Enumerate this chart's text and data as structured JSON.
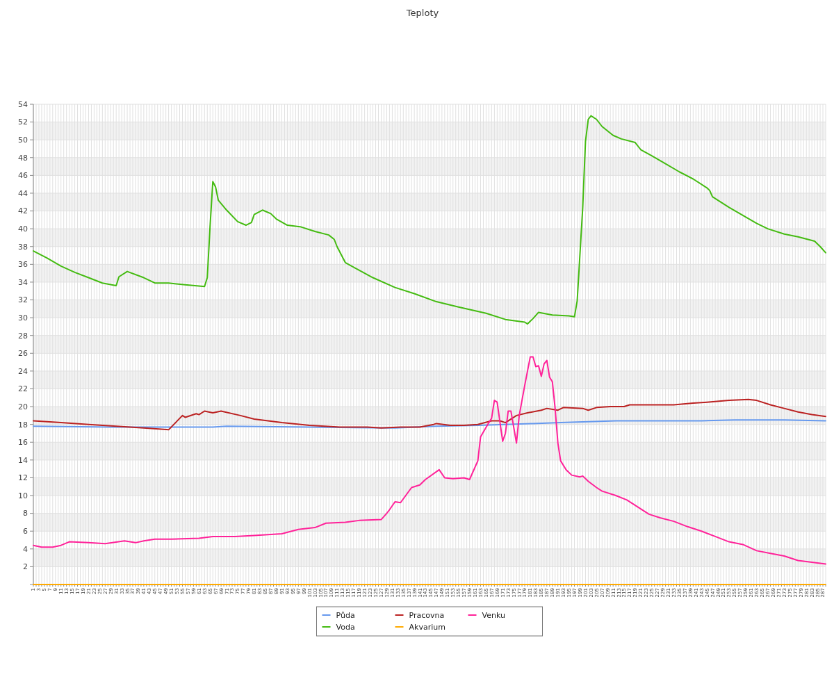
{
  "chart_data": {
    "type": "line",
    "title": "Teploty",
    "grid": true,
    "legend": "bottom",
    "marker": "none",
    "line_style": "solid",
    "xlim": [
      1,
      288
    ],
    "ylim": [
      0,
      54
    ],
    "yticks": [
      {
        "value": 0,
        "label": null
      },
      2,
      4,
      6,
      8,
      10,
      12,
      14,
      16,
      18,
      20,
      22,
      24,
      26,
      28,
      30,
      32,
      34,
      36,
      38,
      40,
      42,
      44,
      46,
      48,
      50,
      52,
      54
    ],
    "xticks": [
      1,
      {
        "value": 2,
        "label": null
      },
      3,
      {
        "value": 4,
        "label": null
      },
      5,
      {
        "value": 6,
        "label": null
      },
      7,
      {
        "value": 8,
        "label": null
      },
      9,
      {
        "value": 10,
        "label": null
      },
      11,
      {
        "value": 12,
        "label": null
      },
      13,
      {
        "value": 14,
        "label": null
      },
      15,
      {
        "value": 16,
        "label": null
      },
      17,
      {
        "value": 18,
        "label": null
      },
      19,
      {
        "value": 20,
        "label": null
      },
      21,
      {
        "value": 22,
        "label": null
      },
      23,
      {
        "value": 24,
        "label": null
      },
      25,
      {
        "value": 26,
        "label": null
      },
      27,
      {
        "value": 28,
        "label": null
      },
      29,
      {
        "value": 30,
        "label": null
      },
      31,
      {
        "value": 32,
        "label": null
      },
      33,
      {
        "value": 34,
        "label": null
      },
      35,
      {
        "value": 36,
        "label": null
      },
      37,
      {
        "value": 38,
        "label": null
      },
      39,
      {
        "value": 40,
        "label": null
      },
      41,
      {
        "value": 42,
        "label": null
      },
      43,
      {
        "value": 44,
        "label": null
      },
      45,
      {
        "value": 46,
        "label": null
      },
      47,
      {
        "value": 48,
        "label": null
      },
      49,
      {
        "value": 50,
        "label": null
      },
      51,
      {
        "value": 52,
        "label": null
      },
      53,
      {
        "value": 54,
        "label": null
      },
      55,
      {
        "value": 56,
        "label": null
      },
      57,
      {
        "value": 58,
        "label": null
      },
      59,
      {
        "value": 60,
        "label": null
      },
      61,
      {
        "value": 62,
        "label": null
      },
      63,
      {
        "value": 64,
        "label": null
      },
      65,
      {
        "value": 66,
        "label": null
      },
      67,
      {
        "value": 68,
        "label": null
      },
      69,
      {
        "value": 70,
        "label": null
      },
      71,
      {
        "value": 72,
        "label": null
      },
      73,
      {
        "value": 74,
        "label": null
      },
      75,
      {
        "value": 76,
        "label": null
      },
      77,
      {
        "value": 78,
        "label": null
      },
      79,
      {
        "value": 80,
        "label": null
      },
      81,
      {
        "value": 82,
        "label": null
      },
      83,
      {
        "value": 84,
        "label": null
      },
      85,
      {
        "value": 86,
        "label": null
      },
      87,
      {
        "value": 88,
        "label": null
      },
      89,
      {
        "value": 90,
        "label": null
      },
      91,
      {
        "value": 92,
        "label": null
      },
      93,
      {
        "value": 94,
        "label": null
      },
      95,
      {
        "value": 96,
        "label": null
      },
      97,
      {
        "value": 98,
        "label": null
      },
      99,
      {
        "value": 100,
        "label": null
      },
      101,
      {
        "value": 102,
        "label": null
      },
      103,
      {
        "value": 104,
        "label": null
      },
      105,
      {
        "value": 106,
        "label": null
      },
      107,
      {
        "value": 108,
        "label": null
      },
      109,
      {
        "value": 110,
        "label": null
      },
      111,
      {
        "value": 112,
        "label": null
      },
      113,
      {
        "value": 114,
        "label": null
      },
      115,
      {
        "value": 116,
        "label": null
      },
      117,
      {
        "value": 118,
        "label": null
      },
      119,
      {
        "value": 120,
        "label": null
      },
      121,
      {
        "value": 122,
        "label": null
      },
      123,
      {
        "value": 124,
        "label": null
      },
      125,
      {
        "value": 126,
        "label": null
      },
      127,
      {
        "value": 128,
        "label": null
      },
      129,
      {
        "value": 130,
        "label": null
      },
      131,
      {
        "value": 132,
        "label": null
      },
      133,
      {
        "value": 134,
        "label": null
      },
      135,
      {
        "value": 136,
        "label": null
      },
      137,
      {
        "value": 138,
        "label": null
      },
      139,
      {
        "value": 140,
        "label": null
      },
      141,
      {
        "value": 142,
        "label": null
      },
      143,
      {
        "value": 144,
        "label": null
      },
      145,
      {
        "value": 146,
        "label": null
      },
      147,
      {
        "value": 148,
        "label": null
      },
      149,
      {
        "value": 150,
        "label": null
      },
      151,
      {
        "value": 152,
        "label": null
      },
      153,
      {
        "value": 154,
        "label": null
      },
      155,
      {
        "value": 156,
        "label": null
      },
      157,
      {
        "value": 158,
        "label": null
      },
      159,
      {
        "value": 160,
        "label": null
      },
      161,
      {
        "value": 162,
        "label": null
      },
      163,
      {
        "value": 164,
        "label": null
      },
      165,
      {
        "value": 166,
        "label": null
      },
      167,
      {
        "value": 168,
        "label": null
      },
      169,
      {
        "value": 170,
        "label": null
      },
      171,
      {
        "value": 172,
        "label": null
      },
      173,
      {
        "value": 174,
        "label": null
      },
      175,
      {
        "value": 176,
        "label": null
      },
      177,
      {
        "value": 178,
        "label": null
      },
      179,
      {
        "value": 180,
        "label": null
      },
      181,
      {
        "value": 182,
        "label": null
      },
      183,
      {
        "value": 184,
        "label": null
      },
      185,
      {
        "value": 186,
        "label": null
      },
      187,
      {
        "value": 188,
        "label": null
      },
      189,
      {
        "value": 190,
        "label": null
      },
      191,
      {
        "value": 192,
        "label": null
      },
      193,
      {
        "value": 194,
        "label": null
      },
      195,
      {
        "value": 196,
        "label": null
      },
      197,
      {
        "value": 198,
        "label": null
      },
      199,
      {
        "value": 200,
        "label": null
      },
      201,
      {
        "value": 202,
        "label": null
      },
      203,
      {
        "value": 204,
        "label": null
      },
      205,
      {
        "value": 206,
        "label": null
      },
      207,
      {
        "value": 208,
        "label": null
      },
      209,
      {
        "value": 210,
        "label": null
      },
      211,
      {
        "value": 212,
        "label": null
      },
      213,
      {
        "value": 214,
        "label": null
      },
      215,
      {
        "value": 216,
        "label": null
      },
      217,
      {
        "value": 218,
        "label": null
      },
      219,
      {
        "value": 220,
        "label": null
      },
      221,
      {
        "value": 222,
        "label": null
      },
      223,
      {
        "value": 224,
        "label": null
      },
      225,
      {
        "value": 226,
        "label": null
      },
      227,
      {
        "value": 228,
        "label": null
      },
      229,
      {
        "value": 230,
        "label": null
      },
      231,
      {
        "value": 232,
        "label": null
      },
      233,
      {
        "value": 234,
        "label": null
      },
      235,
      {
        "value": 236,
        "label": null
      },
      237,
      {
        "value": 238,
        "label": null
      },
      239,
      {
        "value": 240,
        "label": null
      },
      241,
      {
        "value": 242,
        "label": null
      },
      243,
      {
        "value": 244,
        "label": null
      },
      245,
      {
        "value": 246,
        "label": null
      },
      247,
      {
        "value": 248,
        "label": null
      },
      249,
      {
        "value": 250,
        "label": null
      },
      251,
      {
        "value": 252,
        "label": null
      },
      253,
      {
        "value": 254,
        "label": null
      },
      255,
      {
        "value": 256,
        "label": null
      },
      257,
      {
        "value": 258,
        "label": null
      },
      259,
      {
        "value": 260,
        "label": null
      },
      261,
      {
        "value": 262,
        "label": null
      },
      263,
      {
        "value": 264,
        "label": null
      },
      265,
      {
        "value": 266,
        "label": null
      },
      267,
      {
        "value": 268,
        "label": null
      },
      269,
      {
        "value": 270,
        "label": null
      },
      271,
      {
        "value": 272,
        "label": null
      },
      273,
      {
        "value": 274,
        "label": null
      },
      275,
      {
        "value": 276,
        "label": null
      },
      277,
      {
        "value": 278,
        "label": null
      },
      279,
      {
        "value": 280,
        "label": null
      },
      281,
      {
        "value": 282,
        "label": null
      },
      283,
      {
        "value": 284,
        "label": null
      },
      285,
      {
        "value": 286,
        "label": null
      },
      287,
      {
        "value": 288,
        "label": null
      }
    ],
    "series": [
      {
        "name": "Půda",
        "color": "#6699ee",
        "x": [
          1,
          29,
          66,
          71,
          101,
          132,
          147,
          162,
          172,
          182,
          192,
          202,
          212,
          243,
          255,
          273,
          288
        ],
        "values": [
          17.8,
          17.7,
          17.7,
          17.8,
          17.7,
          17.6,
          17.8,
          17.9,
          18.0,
          18.1,
          18.2,
          18.3,
          18.4,
          18.4,
          18.5,
          18.5,
          18.4
        ]
      },
      {
        "name": "Voda",
        "color": "#44bb11",
        "x": [
          1,
          6,
          11,
          16,
          21,
          26,
          31,
          32,
          35,
          41,
          45,
          50,
          56,
          63,
          64,
          65,
          66,
          67,
          68,
          71,
          75,
          78,
          80,
          81,
          84,
          87,
          89,
          93,
          98,
          103,
          108,
          110,
          111,
          114,
          118,
          124,
          132,
          139,
          147,
          155,
          165,
          172,
          179,
          180,
          182,
          184,
          189,
          195,
          197,
          198,
          200,
          201,
          202,
          203,
          205,
          207,
          211,
          214,
          219,
          221,
          225,
          230,
          235,
          240,
          245,
          246,
          247,
          253,
          258,
          263,
          267,
          273,
          278,
          284,
          286,
          288
        ],
        "values": [
          37.5,
          36.7,
          35.8,
          35.1,
          34.5,
          33.9,
          33.6,
          34.6,
          35.2,
          34.5,
          33.9,
          33.9,
          33.7,
          33.5,
          34.5,
          40.2,
          45.3,
          44.7,
          43.2,
          42.1,
          40.8,
          40.4,
          40.7,
          41.6,
          42.1,
          41.7,
          41.1,
          40.4,
          40.2,
          39.7,
          39.3,
          38.8,
          38.0,
          36.2,
          35.5,
          34.5,
          33.4,
          32.7,
          31.8,
          31.2,
          30.5,
          29.8,
          29.5,
          29.3,
          29.9,
          30.6,
          30.3,
          30.2,
          30.1,
          31.9,
          42.4,
          49.8,
          52.3,
          52.7,
          52.3,
          51.5,
          50.5,
          50.1,
          49.7,
          48.9,
          48.2,
          47.3,
          46.4,
          45.6,
          44.6,
          44.3,
          43.6,
          42.4,
          41.5,
          40.6,
          40.0,
          39.4,
          39.1,
          38.6,
          38.0,
          37.3
        ]
      },
      {
        "name": "Pracovna",
        "color": "#bb2222",
        "x": [
          1,
          11,
          21,
          31,
          41,
          50,
          55,
          56,
          60,
          61,
          63,
          66,
          69,
          76,
          81,
          91,
          101,
          112,
          122,
          127,
          134,
          141,
          146,
          147,
          152,
          157,
          162,
          167,
          170,
          172,
          176,
          180,
          185,
          187,
          191,
          193,
          200,
          202,
          205,
          210,
          215,
          217,
          225,
          233,
          240,
          245,
          253,
          260,
          263,
          268,
          273,
          278,
          283,
          288
        ],
        "values": [
          18.4,
          18.2,
          18.0,
          17.8,
          17.6,
          17.4,
          19.0,
          18.8,
          19.2,
          19.1,
          19.5,
          19.3,
          19.5,
          19.0,
          18.6,
          18.2,
          17.9,
          17.7,
          17.7,
          17.6,
          17.7,
          17.7,
          18.0,
          18.1,
          17.9,
          17.9,
          18.0,
          18.4,
          18.4,
          18.2,
          19.0,
          19.3,
          19.6,
          19.8,
          19.6,
          19.9,
          19.8,
          19.6,
          19.9,
          20.0,
          20.0,
          20.2,
          20.2,
          20.2,
          20.4,
          20.5,
          20.7,
          20.8,
          20.7,
          20.2,
          19.8,
          19.4,
          19.1,
          18.9
        ]
      },
      {
        "name": "Akvarium",
        "color": "#ffaa00",
        "x": [
          1,
          288
        ],
        "values": [
          0,
          0
        ]
      },
      {
        "name": "Venku",
        "color": "#ff2299",
        "x": [
          1,
          4,
          8,
          11,
          14,
          21,
          27,
          34,
          38,
          41,
          45,
          51,
          61,
          66,
          74,
          81,
          91,
          97,
          103,
          107,
          114,
          119,
          127,
          129,
          130,
          132,
          134,
          138,
          141,
          143,
          148,
          150,
          153,
          157,
          159,
          162,
          163,
          166,
          167,
          168,
          169,
          171,
          172,
          173,
          174,
          176,
          177,
          179,
          181,
          182,
          183,
          184,
          185,
          186,
          187,
          188,
          189,
          190,
          191,
          192,
          194,
          196,
          199,
          200,
          202,
          205,
          207,
          212,
          216,
          220,
          224,
          228,
          233,
          238,
          243,
          248,
          253,
          258,
          263,
          268,
          273,
          278,
          283,
          288
        ],
        "values": [
          4.4,
          4.2,
          4.2,
          4.4,
          4.8,
          4.7,
          4.6,
          4.9,
          4.7,
          4.9,
          5.1,
          5.1,
          5.2,
          5.4,
          5.4,
          5.5,
          5.7,
          6.2,
          6.4,
          6.9,
          7.0,
          7.2,
          7.3,
          8.0,
          8.4,
          9.3,
          9.2,
          10.9,
          11.2,
          11.8,
          12.9,
          12.0,
          11.9,
          12.0,
          11.8,
          13.9,
          16.6,
          18.2,
          18.7,
          20.7,
          20.5,
          16.1,
          17.0,
          19.5,
          19.5,
          15.9,
          19.0,
          22.4,
          25.6,
          25.6,
          24.5,
          24.6,
          23.4,
          24.8,
          25.2,
          23.3,
          22.8,
          19.8,
          15.9,
          13.9,
          12.9,
          12.3,
          12.1,
          12.2,
          11.6,
          10.9,
          10.5,
          10.0,
          9.5,
          8.7,
          7.9,
          7.5,
          7.1,
          6.5,
          6.0,
          5.4,
          4.8,
          4.5,
          3.8,
          3.5,
          3.2,
          2.7,
          2.5,
          2.3
        ]
      }
    ]
  }
}
